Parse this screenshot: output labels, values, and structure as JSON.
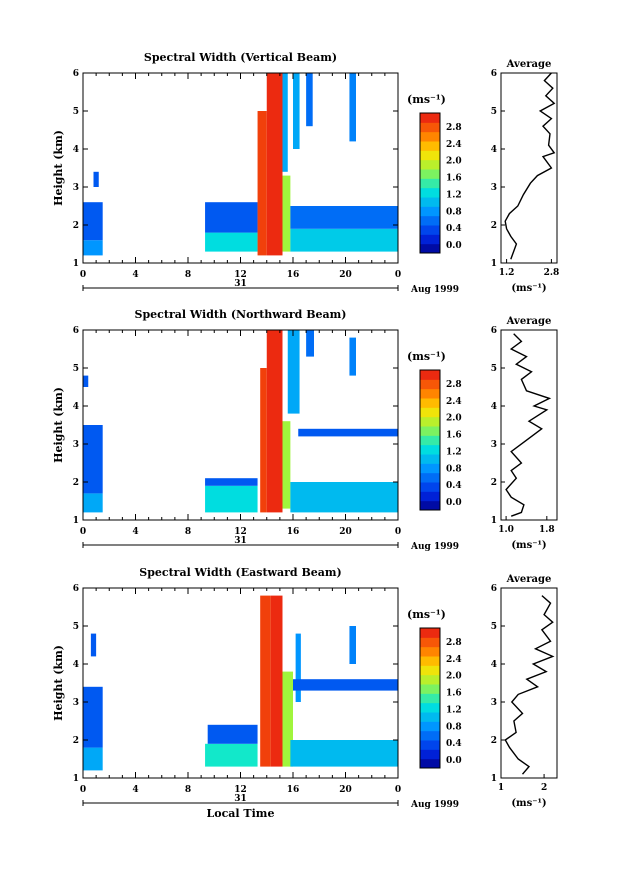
{
  "figure": {
    "x_axis_label": "Local Time",
    "date_label": "Aug 1999",
    "day_label": "31",
    "y_axis_label": "Height (km)",
    "colorbar_unit": "(ms⁻¹)",
    "average_title": "Average",
    "average_unit": "(ms⁻¹)"
  },
  "chart_data": [
    {
      "type": "heatmap",
      "title": "Spectral Width (Vertical Beam)",
      "xlabel": "",
      "ylabel": "Height (km)",
      "x_ticks": [
        "0",
        "4",
        "8",
        "12",
        "16",
        "20",
        "0"
      ],
      "xlim": [
        0,
        24
      ],
      "ylim": [
        1,
        6
      ],
      "y_ticks": [
        "1",
        "2",
        "3",
        "4",
        "5",
        "6"
      ],
      "colorbar": {
        "ticks": [
          "0.0",
          "0.4",
          "0.8",
          "1.2",
          "1.6",
          "2.0",
          "2.4",
          "2.8"
        ],
        "range": [
          0,
          3.0
        ]
      },
      "regions": [
        {
          "t": [
            0.0,
            1.5
          ],
          "h": [
            1.2,
            1.6
          ],
          "v": 0.9
        },
        {
          "t": [
            0.0,
            1.5
          ],
          "h": [
            1.6,
            2.6
          ],
          "v": 0.6
        },
        {
          "t": [
            0.8,
            1.2
          ],
          "h": [
            3.0,
            3.4
          ],
          "v": 0.6
        },
        {
          "t": [
            9.3,
            13.3
          ],
          "h": [
            1.3,
            1.8
          ],
          "v": 1.3
        },
        {
          "t": [
            9.3,
            13.3
          ],
          "h": [
            1.8,
            2.6
          ],
          "v": 0.6
        },
        {
          "t": [
            13.3,
            14.0
          ],
          "h": [
            1.2,
            5.0
          ],
          "v": 2.8
        },
        {
          "t": [
            14.0,
            15.2
          ],
          "h": [
            1.2,
            6.0
          ],
          "v": 2.9
        },
        {
          "t": [
            15.2,
            15.8
          ],
          "h": [
            1.3,
            3.3
          ],
          "v": 1.8
        },
        {
          "t": [
            15.2,
            15.6
          ],
          "h": [
            3.4,
            6.0
          ],
          "v": 1.0
        },
        {
          "t": [
            16.0,
            16.5
          ],
          "h": [
            4.0,
            6.0
          ],
          "v": 1.0
        },
        {
          "t": [
            17.0,
            17.5
          ],
          "h": [
            4.6,
            6.0
          ],
          "v": 0.7
        },
        {
          "t": [
            15.8,
            24.0
          ],
          "h": [
            1.3,
            1.9
          ],
          "v": 1.2
        },
        {
          "t": [
            15.8,
            24.0
          ],
          "h": [
            1.9,
            2.5
          ],
          "v": 0.7
        },
        {
          "t": [
            20.3,
            20.8
          ],
          "h": [
            4.2,
            6.0
          ],
          "v": 0.8
        }
      ],
      "average": {
        "xlim": [
          1.0,
          3.0
        ],
        "x_ticks": [
          "1.2",
          "2.8"
        ],
        "x_tick_values": [
          1.2,
          2.8
        ],
        "profile": [
          [
            1.35,
            1.1
          ],
          [
            1.45,
            1.3
          ],
          [
            1.55,
            1.5
          ],
          [
            1.35,
            1.7
          ],
          [
            1.2,
            1.9
          ],
          [
            1.15,
            2.1
          ],
          [
            1.3,
            2.3
          ],
          [
            1.6,
            2.5
          ],
          [
            1.8,
            2.8
          ],
          [
            2.05,
            3.1
          ],
          [
            2.3,
            3.3
          ],
          [
            2.8,
            3.5
          ],
          [
            2.5,
            3.8
          ],
          [
            2.9,
            3.9
          ],
          [
            2.7,
            4.1
          ],
          [
            2.75,
            4.4
          ],
          [
            2.5,
            4.6
          ],
          [
            2.8,
            4.8
          ],
          [
            2.4,
            5.0
          ],
          [
            2.9,
            5.2
          ],
          [
            2.6,
            5.4
          ],
          [
            2.85,
            5.6
          ],
          [
            2.55,
            5.8
          ],
          [
            2.8,
            6.0
          ]
        ]
      }
    },
    {
      "type": "heatmap",
      "title": "Spectral Width (Northward Beam)",
      "xlabel": "",
      "ylabel": "Height (km)",
      "x_ticks": [
        "0",
        "4",
        "8",
        "12",
        "16",
        "20",
        "0"
      ],
      "xlim": [
        0,
        24
      ],
      "ylim": [
        1,
        6
      ],
      "y_ticks": [
        "1",
        "2",
        "3",
        "4",
        "5",
        "6"
      ],
      "colorbar": {
        "ticks": [
          "0.0",
          "0.4",
          "0.8",
          "1.2",
          "1.6",
          "2.0",
          "2.4",
          "2.8"
        ],
        "range": [
          0,
          3.0
        ]
      },
      "regions": [
        {
          "t": [
            0.0,
            1.5
          ],
          "h": [
            1.2,
            1.7
          ],
          "v": 1.0
        },
        {
          "t": [
            0.0,
            1.5
          ],
          "h": [
            1.7,
            3.5
          ],
          "v": 0.6
        },
        {
          "t": [
            0.0,
            0.4
          ],
          "h": [
            4.5,
            4.8
          ],
          "v": 0.6
        },
        {
          "t": [
            9.3,
            13.3
          ],
          "h": [
            1.2,
            1.9
          ],
          "v": 1.3
        },
        {
          "t": [
            9.3,
            13.3
          ],
          "h": [
            1.9,
            2.1
          ],
          "v": 0.6
        },
        {
          "t": [
            13.5,
            14.0
          ],
          "h": [
            1.2,
            5.0
          ],
          "v": 2.8
        },
        {
          "t": [
            14.0,
            15.2
          ],
          "h": [
            1.2,
            6.0
          ],
          "v": 2.9
        },
        {
          "t": [
            15.2,
            15.8
          ],
          "h": [
            1.3,
            3.6
          ],
          "v": 1.8
        },
        {
          "t": [
            15.6,
            16.5
          ],
          "h": [
            3.8,
            6.0
          ],
          "v": 1.0
        },
        {
          "t": [
            17.0,
            17.6
          ],
          "h": [
            5.3,
            6.0
          ],
          "v": 0.7
        },
        {
          "t": [
            15.8,
            24.0
          ],
          "h": [
            1.2,
            2.0
          ],
          "v": 1.1
        },
        {
          "t": [
            16.4,
            24.0
          ],
          "h": [
            3.2,
            3.4
          ],
          "v": 0.6
        },
        {
          "t": [
            20.3,
            20.8
          ],
          "h": [
            4.8,
            5.8
          ],
          "v": 0.8
        }
      ],
      "average": {
        "xlim": [
          0.9,
          2.0
        ],
        "x_ticks": [
          "1.0",
          "1.8"
        ],
        "x_tick_values": [
          1.0,
          1.8
        ],
        "profile": [
          [
            1.1,
            1.1
          ],
          [
            1.3,
            1.2
          ],
          [
            1.35,
            1.4
          ],
          [
            1.1,
            1.6
          ],
          [
            1.0,
            1.8
          ],
          [
            1.2,
            2.1
          ],
          [
            1.1,
            2.3
          ],
          [
            1.3,
            2.5
          ],
          [
            1.1,
            2.8
          ],
          [
            1.4,
            3.1
          ],
          [
            1.7,
            3.4
          ],
          [
            1.45,
            3.6
          ],
          [
            1.8,
            3.9
          ],
          [
            1.55,
            4.0
          ],
          [
            1.85,
            4.2
          ],
          [
            1.4,
            4.4
          ],
          [
            1.3,
            4.7
          ],
          [
            1.5,
            4.9
          ],
          [
            1.2,
            5.1
          ],
          [
            1.4,
            5.3
          ],
          [
            1.1,
            5.5
          ],
          [
            1.3,
            5.7
          ],
          [
            1.15,
            5.9
          ]
        ]
      }
    },
    {
      "type": "heatmap",
      "title": "Spectral Width (Eastward Beam)",
      "xlabel": "Local Time",
      "ylabel": "Height (km)",
      "x_ticks": [
        "0",
        "4",
        "8",
        "12",
        "16",
        "20",
        "0"
      ],
      "xlim": [
        0,
        24
      ],
      "ylim": [
        1,
        6
      ],
      "y_ticks": [
        "1",
        "2",
        "3",
        "4",
        "5",
        "6"
      ],
      "colorbar": {
        "ticks": [
          "0.0",
          "0.4",
          "0.8",
          "1.2",
          "1.6",
          "2.0",
          "2.4",
          "2.8"
        ],
        "range": [
          0,
          3.0
        ]
      },
      "regions": [
        {
          "t": [
            0.0,
            1.5
          ],
          "h": [
            1.2,
            1.8
          ],
          "v": 1.0
        },
        {
          "t": [
            0.0,
            1.5
          ],
          "h": [
            1.8,
            3.4
          ],
          "v": 0.6
        },
        {
          "t": [
            0.6,
            1.0
          ],
          "h": [
            4.2,
            4.8
          ],
          "v": 0.6
        },
        {
          "t": [
            9.3,
            13.3
          ],
          "h": [
            1.3,
            1.9
          ],
          "v": 1.4
        },
        {
          "t": [
            9.5,
            13.3
          ],
          "h": [
            1.9,
            2.4
          ],
          "v": 0.6
        },
        {
          "t": [
            13.5,
            14.3
          ],
          "h": [
            1.3,
            5.8
          ],
          "v": 2.8
        },
        {
          "t": [
            14.3,
            15.2
          ],
          "h": [
            1.3,
            5.8
          ],
          "v": 2.9
        },
        {
          "t": [
            15.2,
            16.0
          ],
          "h": [
            1.3,
            3.8
          ],
          "v": 1.8
        },
        {
          "t": [
            16.2,
            16.6
          ],
          "h": [
            3.0,
            4.8
          ],
          "v": 0.9
        },
        {
          "t": [
            15.8,
            24.0
          ],
          "h": [
            1.3,
            2.0
          ],
          "v": 1.1
        },
        {
          "t": [
            16.0,
            24.0
          ],
          "h": [
            3.3,
            3.6
          ],
          "v": 0.6
        },
        {
          "t": [
            20.3,
            20.8
          ],
          "h": [
            4.0,
            5.0
          ],
          "v": 0.8
        }
      ],
      "average": {
        "xlim": [
          1.0,
          2.3
        ],
        "x_ticks": [
          "1",
          "2"
        ],
        "x_tick_values": [
          1.0,
          2.0
        ],
        "profile": [
          [
            1.5,
            1.1
          ],
          [
            1.65,
            1.3
          ],
          [
            1.4,
            1.5
          ],
          [
            1.2,
            1.8
          ],
          [
            1.1,
            2.0
          ],
          [
            1.35,
            2.2
          ],
          [
            1.3,
            2.5
          ],
          [
            1.5,
            2.7
          ],
          [
            1.25,
            3.0
          ],
          [
            1.4,
            3.2
          ],
          [
            1.85,
            3.4
          ],
          [
            1.6,
            3.6
          ],
          [
            2.05,
            3.8
          ],
          [
            1.75,
            4.0
          ],
          [
            2.2,
            4.2
          ],
          [
            1.8,
            4.4
          ],
          [
            2.15,
            4.6
          ],
          [
            1.95,
            4.9
          ],
          [
            2.2,
            5.1
          ],
          [
            2.0,
            5.3
          ],
          [
            2.15,
            5.6
          ],
          [
            1.95,
            5.8
          ]
        ]
      }
    }
  ]
}
